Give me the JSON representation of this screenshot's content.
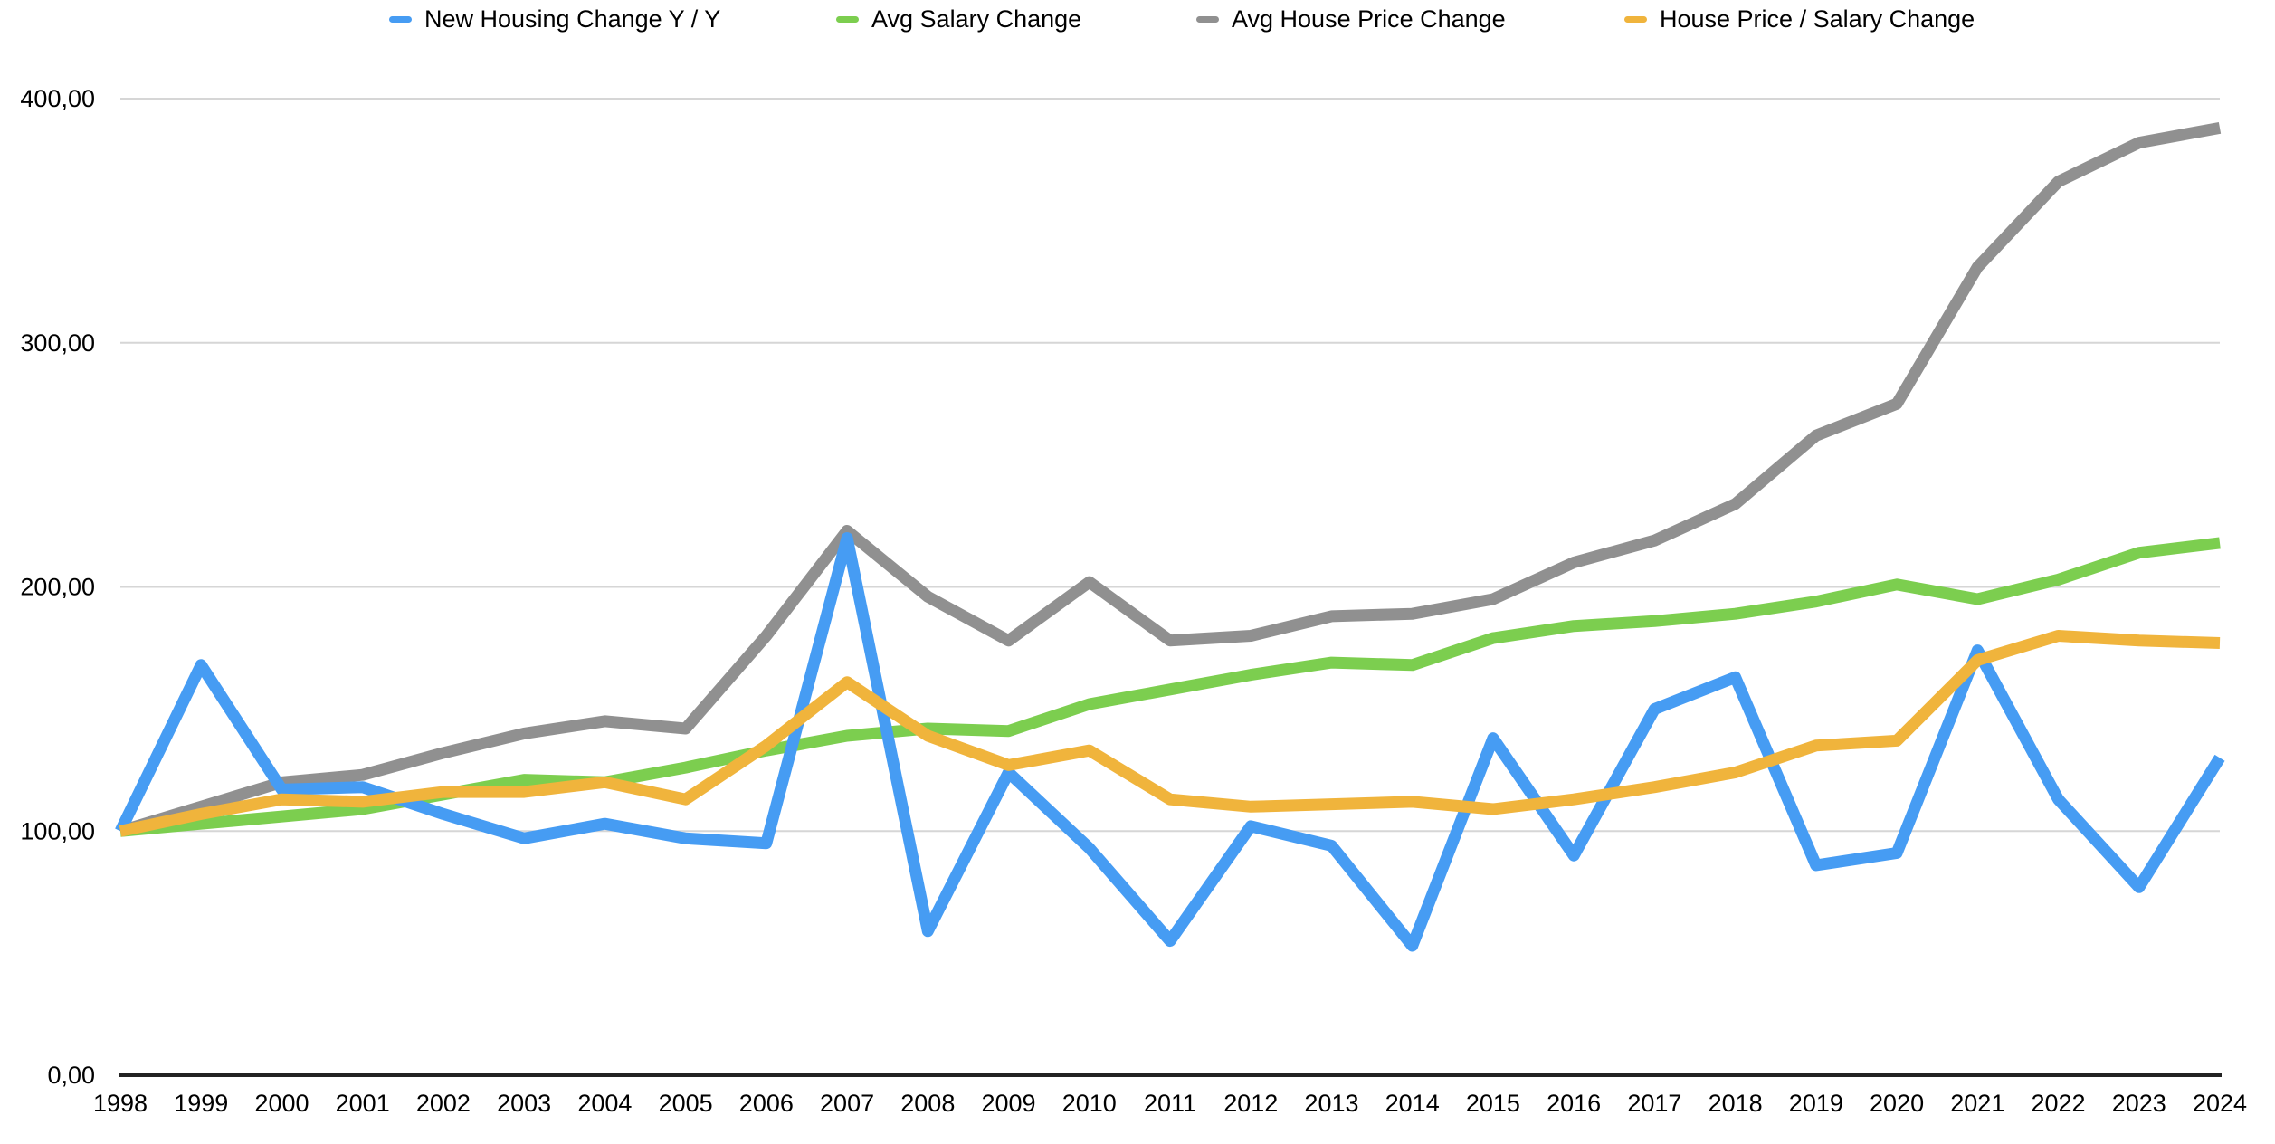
{
  "chart_data": {
    "type": "line",
    "title": "",
    "xlabel": "",
    "ylabel": "",
    "categories": [
      "1998",
      "1999",
      "2000",
      "2001",
      "2002",
      "2003",
      "2004",
      "2005",
      "2006",
      "2007",
      "2008",
      "2009",
      "2010",
      "2011",
      "2012",
      "2013",
      "2014",
      "2015",
      "2016",
      "2017",
      "2018",
      "2019",
      "2020",
      "2021",
      "2022",
      "2023",
      "2024"
    ],
    "series": [
      {
        "name": "New Housing Change Y / Y",
        "color": "#469CF3",
        "values": [
          100,
          168,
          117,
          118,
          107,
          97,
          103,
          97,
          95,
          220,
          59,
          124,
          93,
          55,
          102,
          94,
          53,
          138,
          90,
          150,
          163,
          86,
          91,
          174,
          113,
          77,
          130
        ]
      },
      {
        "name": "Avg Salary Change",
        "color": "#7CCE4F",
        "values": [
          100,
          103,
          106,
          109,
          115,
          121,
          120,
          126,
          133,
          139,
          142,
          141,
          152,
          158,
          164,
          169,
          168,
          179,
          184,
          186,
          189,
          194,
          201,
          195,
          203,
          214,
          218
        ]
      },
      {
        "name": "Avg House Price Change",
        "color": "#909090",
        "values": [
          100,
          110,
          120,
          123,
          132,
          140,
          145,
          142,
          180,
          223,
          196,
          178,
          202,
          178,
          180,
          188,
          189,
          195,
          210,
          219,
          234,
          262,
          275,
          331,
          366,
          382,
          388
        ]
      },
      {
        "name": "House Price / Salary Change",
        "color": "#F0B43C",
        "values": [
          100,
          107,
          113,
          112,
          116,
          116,
          120,
          113,
          135,
          161,
          139,
          127,
          133,
          113,
          110,
          111,
          112,
          109,
          113,
          118,
          124,
          135,
          137,
          170,
          180,
          178,
          177
        ]
      }
    ],
    "ylim": [
      0,
      400
    ],
    "y_ticks": [
      {
        "value": 400,
        "label": "400,00"
      },
      {
        "value": 300,
        "label": "300,00"
      },
      {
        "value": 200,
        "label": "200,00"
      },
      {
        "value": 100,
        "label": "100,00"
      },
      {
        "value": 0,
        "label": "0,00"
      }
    ],
    "grid": true,
    "legend_position": "top",
    "gridline_color": "#D6D6D6",
    "axis_color": "#222222",
    "background": "#FFFFFF"
  }
}
